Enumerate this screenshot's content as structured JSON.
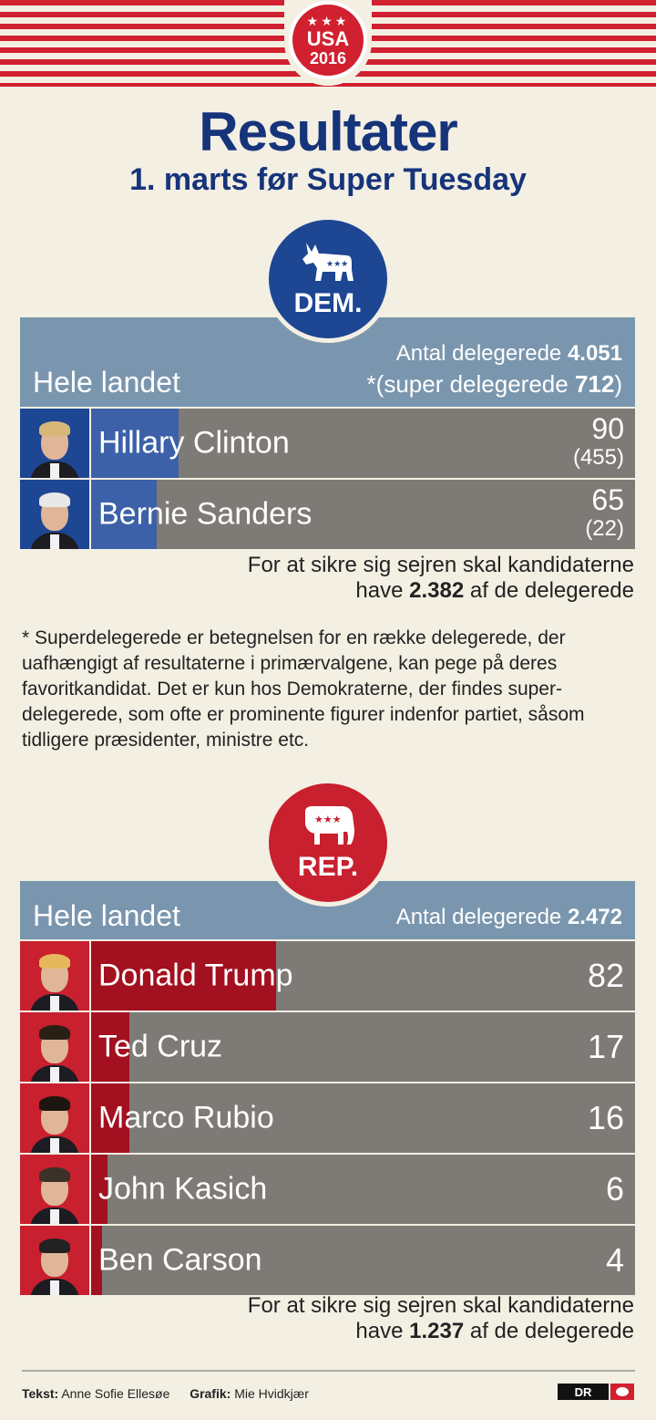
{
  "header": {
    "badge_stars": "★★★",
    "badge_word": "USA",
    "badge_year": "2016",
    "title": "Resultater",
    "subtitle": "1. marts før Super Tuesday"
  },
  "dem": {
    "logo_icon": "donkey-icon",
    "logo_label": "DEM.",
    "scope": "Hele landet",
    "delegates_label": "Antal delegerede",
    "delegates_value": "4.051",
    "super_prefix": "*(super delegerede ",
    "super_value": "712",
    "super_suffix": ")",
    "candidates": [
      {
        "name": "Hillary Clinton",
        "delegates": "90",
        "super": "(455)",
        "fill_fraction": 0.016,
        "hair": "#d7b878"
      },
      {
        "name": "Bernie Sanders",
        "delegates": "65",
        "super": "(22)",
        "fill_fraction": 0.012,
        "hair": "#e8e8e8"
      }
    ],
    "note_line1": "For at sikre sig sejren skal kandidaterne",
    "note_prefix": "have ",
    "note_value": "2.382",
    "note_suffix": " af de delegerede"
  },
  "footnote": "* Superdelegerede er betegnelsen for en række delegerede, der uafhængigt af resultaterne i primærvalgene, kan pege på deres favoritkandidat. Det er kun hos Demokraterne, der findes super-delegerede, som ofte er prominente figurer indenfor partiet, såsom tidligere præsidenter, ministre etc.",
  "rep": {
    "logo_icon": "elephant-icon",
    "logo_label": "REP.",
    "scope": "Hele landet",
    "delegates_label": "Antal delegerede",
    "delegates_value": "2.472",
    "candidates": [
      {
        "name": "Donald Trump",
        "delegates": "82",
        "fill_fraction": 0.034,
        "hair": "#e6b85c"
      },
      {
        "name": "Ted Cruz",
        "delegates": "17",
        "fill_fraction": 0.007,
        "hair": "#2a2016"
      },
      {
        "name": "Marco Rubio",
        "delegates": "16",
        "fill_fraction": 0.007,
        "hair": "#1d1610"
      },
      {
        "name": "John Kasich",
        "delegates": "6",
        "fill_fraction": 0.003,
        "hair": "#3b3128"
      },
      {
        "name": "Ben Carson",
        "delegates": "4",
        "fill_fraction": 0.002,
        "hair": "#222"
      }
    ],
    "note_line1": "For at sikre sig sejren skal kandidaterne",
    "note_prefix": "have ",
    "note_value": "1.237",
    "note_suffix": " af de delegerede"
  },
  "credits": {
    "text_label": "Tekst:",
    "text_name": "Anne Sofie Ellesøe",
    "graphic_label": "Grafik:",
    "graphic_name": "Mie Hvidkjær",
    "logo_text": "DR"
  }
}
